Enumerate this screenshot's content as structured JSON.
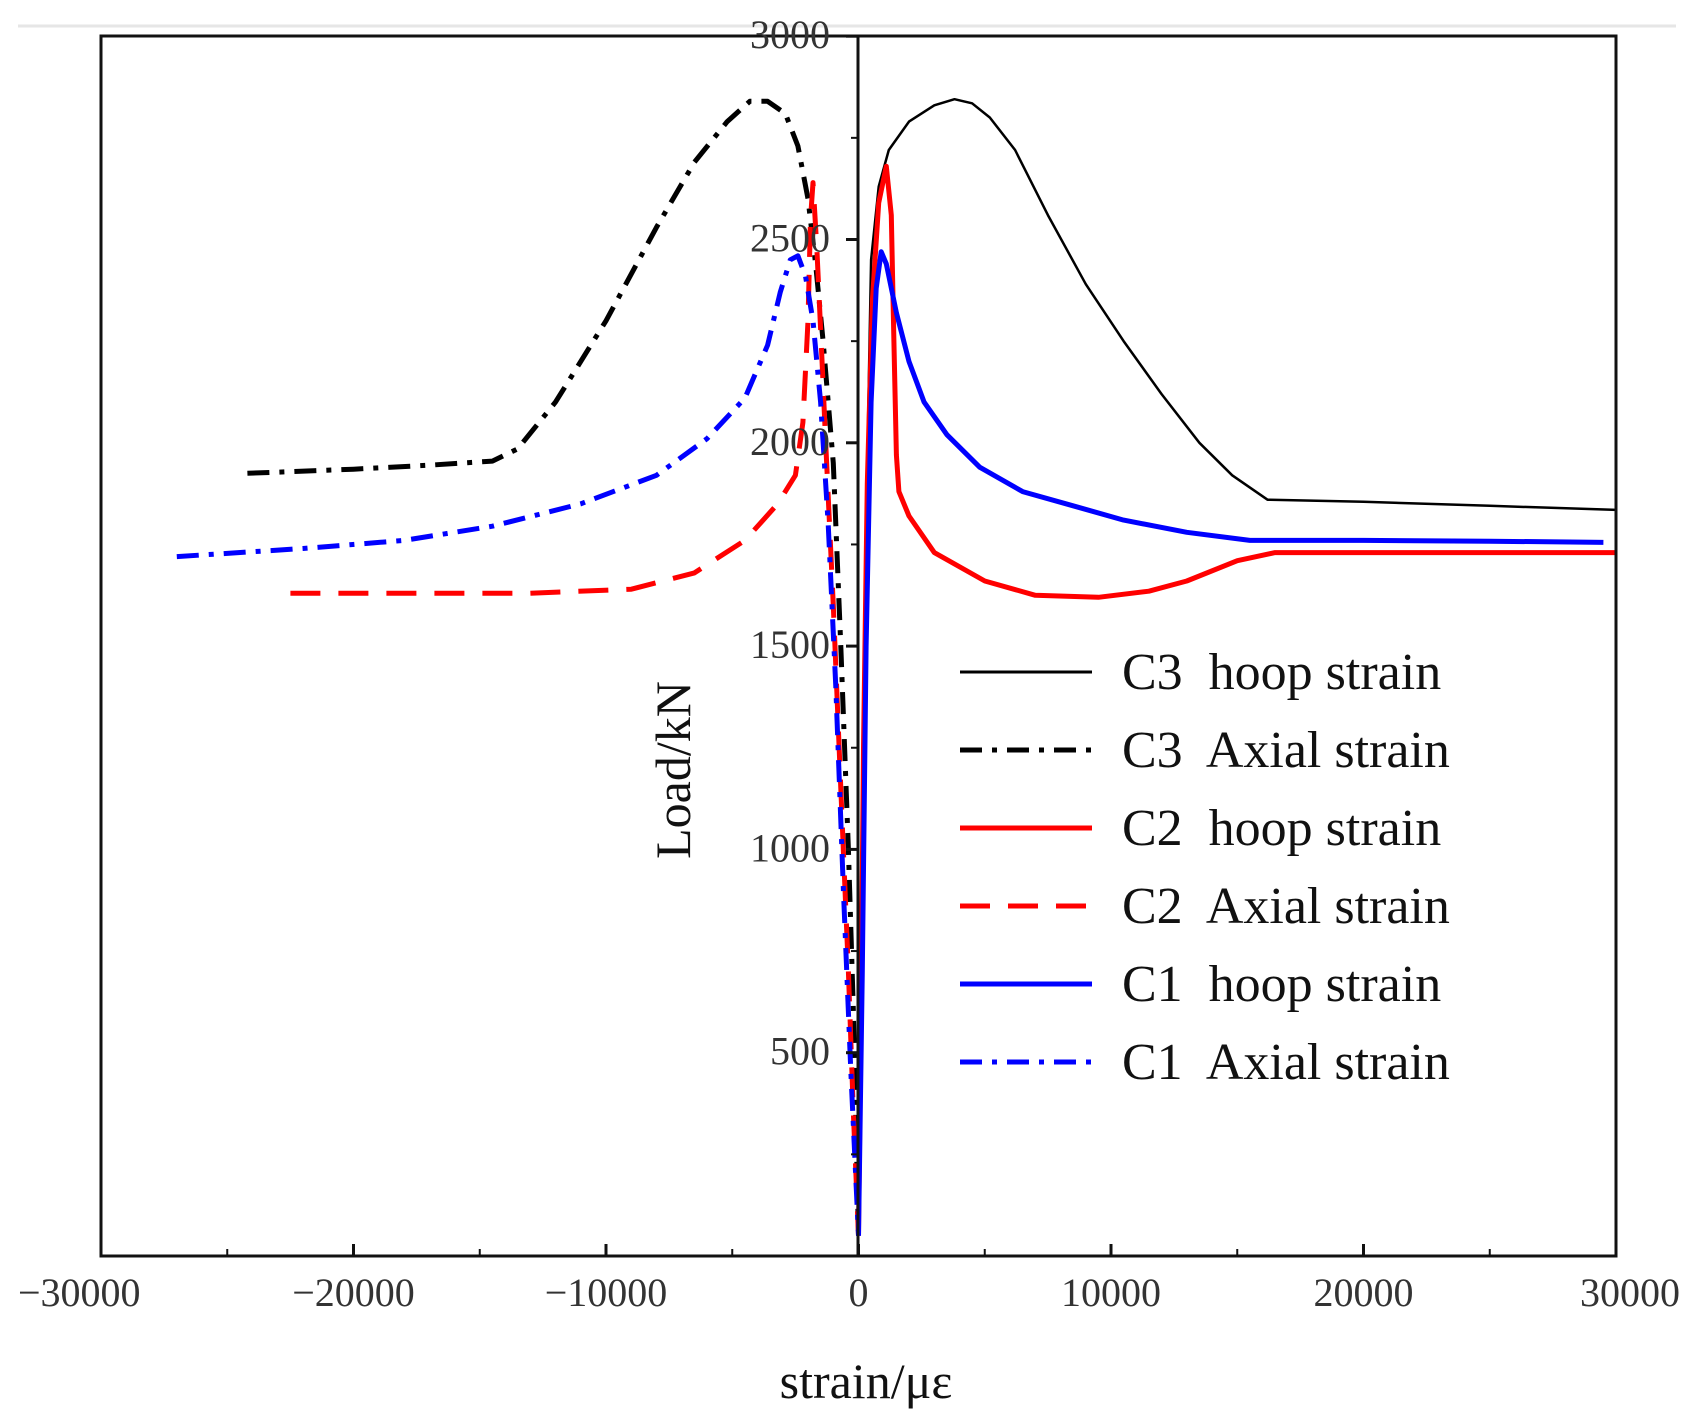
{
  "chart_data": {
    "type": "line",
    "xlabel": "strain/με",
    "ylabel": "Load/kN",
    "xlim": [
      -30000,
      30000
    ],
    "ylim": [
      0,
      3000
    ],
    "x_ticks": [
      -30000,
      -20000,
      -10000,
      0,
      10000,
      20000,
      30000
    ],
    "x_tick_labels": [
      "−30000",
      "−20000",
      "−10000",
      "0",
      "10000",
      "20000",
      "30000"
    ],
    "y_ticks": [
      500,
      1000,
      1500,
      2000,
      2500,
      3000
    ],
    "y_tick_labels": [
      "500",
      "1000",
      "1500",
      "2000",
      "2500",
      "3000"
    ],
    "grid": false,
    "legend_position": "right",
    "series": [
      {
        "name": "C3  hoop strain",
        "color": "#000000",
        "dash": "solid",
        "points": [
          [
            0,
            50
          ],
          [
            150,
            1000
          ],
          [
            300,
            1800
          ],
          [
            500,
            2450
          ],
          [
            800,
            2630
          ],
          [
            1200,
            2720
          ],
          [
            2000,
            2790
          ],
          [
            3000,
            2830
          ],
          [
            3800,
            2845
          ],
          [
            4500,
            2835
          ],
          [
            5200,
            2800
          ],
          [
            6200,
            2720
          ],
          [
            7500,
            2560
          ],
          [
            9000,
            2390
          ],
          [
            10500,
            2250
          ],
          [
            12000,
            2120
          ],
          [
            13500,
            2000
          ],
          [
            14800,
            1920
          ],
          [
            16200,
            1860
          ],
          [
            20000,
            1855
          ],
          [
            25000,
            1845
          ],
          [
            30000,
            1835
          ]
        ]
      },
      {
        "name": "C3  Axial strain",
        "color": "#000000",
        "dash": "dashdot",
        "points": [
          [
            -24200,
            1925
          ],
          [
            -20000,
            1935
          ],
          [
            -17000,
            1945
          ],
          [
            -14500,
            1955
          ],
          [
            -13500,
            1985
          ],
          [
            -12000,
            2100
          ],
          [
            -10000,
            2300
          ],
          [
            -8000,
            2530
          ],
          [
            -6500,
            2690
          ],
          [
            -5200,
            2790
          ],
          [
            -4300,
            2840
          ],
          [
            -3600,
            2840
          ],
          [
            -2900,
            2810
          ],
          [
            -2400,
            2730
          ],
          [
            -2000,
            2600
          ],
          [
            -1700,
            2440
          ],
          [
            -1400,
            2250
          ],
          [
            -1000,
            1950
          ],
          [
            -700,
            1500
          ],
          [
            -400,
            1000
          ],
          [
            -200,
            600
          ],
          [
            0,
            50
          ]
        ]
      },
      {
        "name": "C2  hoop strain",
        "color": "#ff0000",
        "dash": "solid",
        "points": [
          [
            0,
            50
          ],
          [
            100,
            600
          ],
          [
            200,
            1250
          ],
          [
            350,
            1900
          ],
          [
            550,
            2350
          ],
          [
            800,
            2590
          ],
          [
            1100,
            2680
          ],
          [
            1300,
            2560
          ],
          [
            1400,
            2250
          ],
          [
            1500,
            1970
          ],
          [
            1600,
            1880
          ],
          [
            2000,
            1820
          ],
          [
            3000,
            1730
          ],
          [
            5000,
            1660
          ],
          [
            7000,
            1625
          ],
          [
            9500,
            1620
          ],
          [
            11500,
            1635
          ],
          [
            13000,
            1660
          ],
          [
            15000,
            1710
          ],
          [
            16500,
            1730
          ],
          [
            20000,
            1730
          ],
          [
            25000,
            1730
          ],
          [
            30000,
            1730
          ]
        ]
      },
      {
        "name": "C2  Axial strain",
        "color": "#ff0000",
        "dash": "dashed",
        "points": [
          [
            -22500,
            1630
          ],
          [
            -18000,
            1630
          ],
          [
            -13000,
            1630
          ],
          [
            -9000,
            1640
          ],
          [
            -6500,
            1680
          ],
          [
            -4500,
            1760
          ],
          [
            -3200,
            1850
          ],
          [
            -2500,
            1920
          ],
          [
            -2200,
            2050
          ],
          [
            -2000,
            2300
          ],
          [
            -1900,
            2550
          ],
          [
            -1800,
            2640
          ],
          [
            -1650,
            2480
          ],
          [
            -1500,
            2280
          ],
          [
            -1300,
            2000
          ],
          [
            -1000,
            1600
          ],
          [
            -700,
            1150
          ],
          [
            -400,
            700
          ],
          [
            -200,
            350
          ],
          [
            0,
            50
          ]
        ]
      },
      {
        "name": "C1  hoop strain",
        "color": "#0000ff",
        "dash": "solid",
        "points": [
          [
            0,
            50
          ],
          [
            150,
            700
          ],
          [
            300,
            1500
          ],
          [
            500,
            2100
          ],
          [
            700,
            2380
          ],
          [
            900,
            2470
          ],
          [
            1100,
            2440
          ],
          [
            1500,
            2320
          ],
          [
            2000,
            2200
          ],
          [
            2600,
            2100
          ],
          [
            3500,
            2020
          ],
          [
            4800,
            1940
          ],
          [
            6500,
            1880
          ],
          [
            8500,
            1845
          ],
          [
            10500,
            1810
          ],
          [
            13000,
            1780
          ],
          [
            15500,
            1760
          ],
          [
            20000,
            1760
          ],
          [
            25000,
            1758
          ],
          [
            29500,
            1755
          ]
        ]
      },
      {
        "name": "C1  Axial strain",
        "color": "#0000ff",
        "dash": "dashdot",
        "points": [
          [
            -27000,
            1720
          ],
          [
            -22000,
            1740
          ],
          [
            -18000,
            1760
          ],
          [
            -14500,
            1795
          ],
          [
            -11000,
            1850
          ],
          [
            -8000,
            1920
          ],
          [
            -6000,
            2010
          ],
          [
            -4500,
            2110
          ],
          [
            -3600,
            2240
          ],
          [
            -3100,
            2370
          ],
          [
            -2700,
            2450
          ],
          [
            -2400,
            2460
          ],
          [
            -2100,
            2410
          ],
          [
            -1800,
            2300
          ],
          [
            -1500,
            2100
          ],
          [
            -1200,
            1800
          ],
          [
            -900,
            1400
          ],
          [
            -600,
            900
          ],
          [
            -300,
            450
          ],
          [
            0,
            50
          ]
        ]
      }
    ]
  }
}
